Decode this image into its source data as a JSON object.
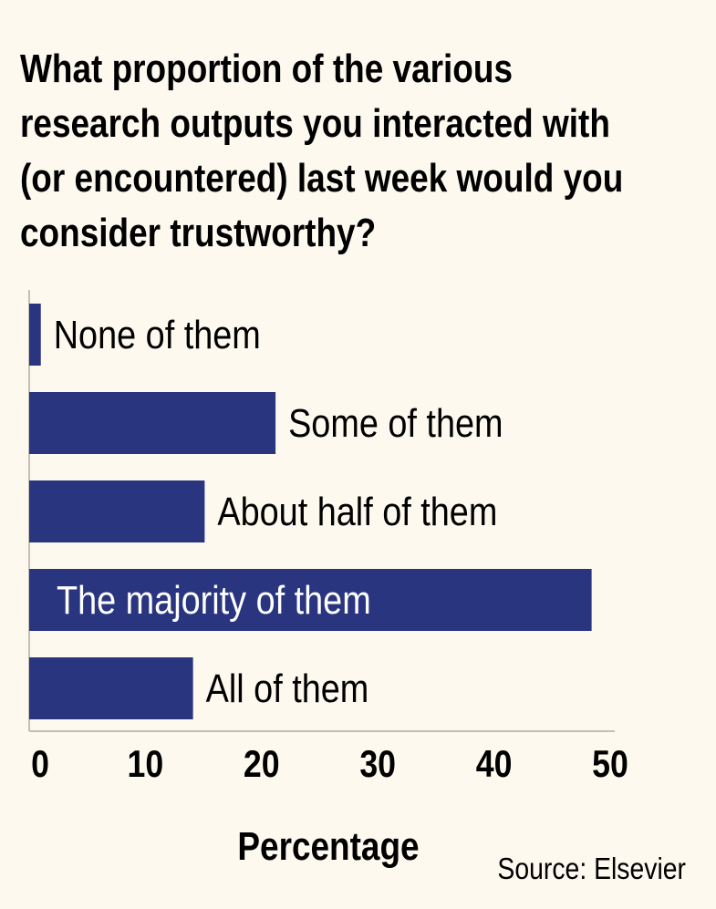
{
  "chart_data": {
    "type": "bar",
    "orientation": "horizontal",
    "title_lines": [
      "What proportion of the various",
      "research outputs you interacted with",
      "(or encountered) last week would you",
      "consider trustworthy?"
    ],
    "categories": [
      "None of them",
      "Some of them",
      "About half of them",
      "The majority of them",
      "All of them"
    ],
    "values": [
      1.0,
      21.2,
      15.1,
      48.4,
      14.1
    ],
    "xlabel": "Percentage",
    "ylabel": "",
    "xlim": [
      0,
      50
    ],
    "xticks": [
      "0",
      "10",
      "20",
      "30",
      "40",
      "50"
    ],
    "grid": false,
    "source": "Source: Elsevier",
    "colors": {
      "bar": "#2a3580",
      "background": "#fdf9ef",
      "axis": "#b0aca4"
    }
  }
}
